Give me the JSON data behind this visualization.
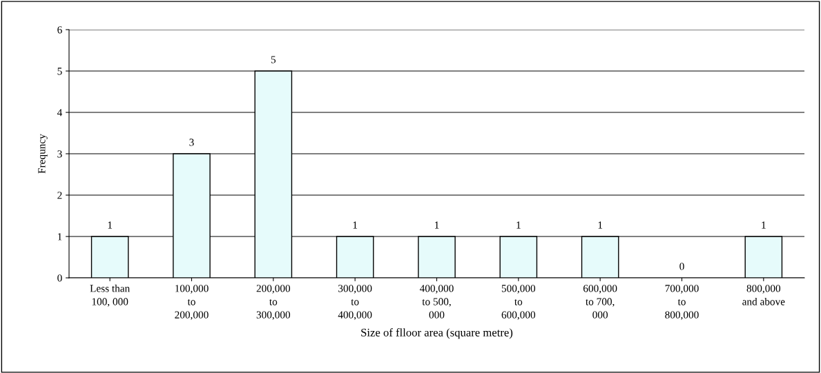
{
  "chart_data": {
    "type": "bar",
    "categories": [
      "Less than\n100, 000",
      "100,000\nto\n200,000",
      "200,000\nto\n300,000",
      "300,000\nto\n400,000",
      "400,000\nto 500,\n000",
      "500,000\nto\n600,000",
      "600,000\nto 700,\n000",
      "700,000\nto\n800,000",
      "800,000\nand above"
    ],
    "values": [
      1,
      3,
      5,
      1,
      1,
      1,
      1,
      0,
      1
    ],
    "color": "#e6fbfb",
    "xlabel": "Size of flloor area (square metre)",
    "ylabel": "Frequncy",
    "ylim": [
      0,
      6
    ],
    "yticks": [
      0,
      1,
      2,
      3,
      4,
      5,
      6
    ],
    "grid": "y",
    "data_labels": true,
    "legend": false
  }
}
